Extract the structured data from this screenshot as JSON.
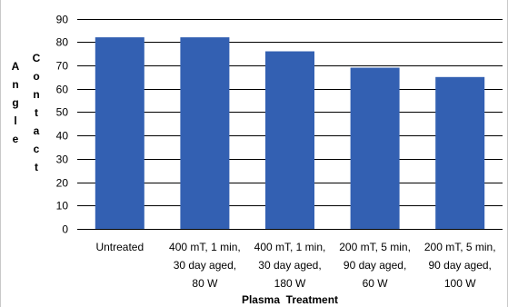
{
  "chart_data": {
    "type": "bar",
    "categories": [
      [
        "Untreated"
      ],
      [
        "400 mT, 1 min,",
        "30 day aged,",
        "80 W"
      ],
      [
        "400 mT, 1 min,",
        "30 day aged,",
        "180 W"
      ],
      [
        "200 mT, 5 min,",
        "90 day aged,",
        "60 W"
      ],
      [
        "200 mT, 5 min,",
        "90 day aged,",
        "100 W"
      ]
    ],
    "values": [
      82,
      82,
      76,
      69,
      65
    ],
    "xlabel": "Plasma  Treatment",
    "ylabel_columns": [
      [
        "A",
        "n",
        "g",
        "l",
        "e"
      ],
      [
        "C",
        "o",
        "n",
        "t",
        "a",
        "c",
        "t"
      ]
    ],
    "ylim": [
      0,
      90
    ],
    "yticks": [
      0,
      10,
      20,
      30,
      40,
      50,
      60,
      70,
      80,
      90
    ],
    "grid": true,
    "legend": "none",
    "colors": {
      "bar": "#3360B2",
      "grid": "#000000",
      "text": "#000000",
      "background": "#FFFFFF"
    }
  }
}
